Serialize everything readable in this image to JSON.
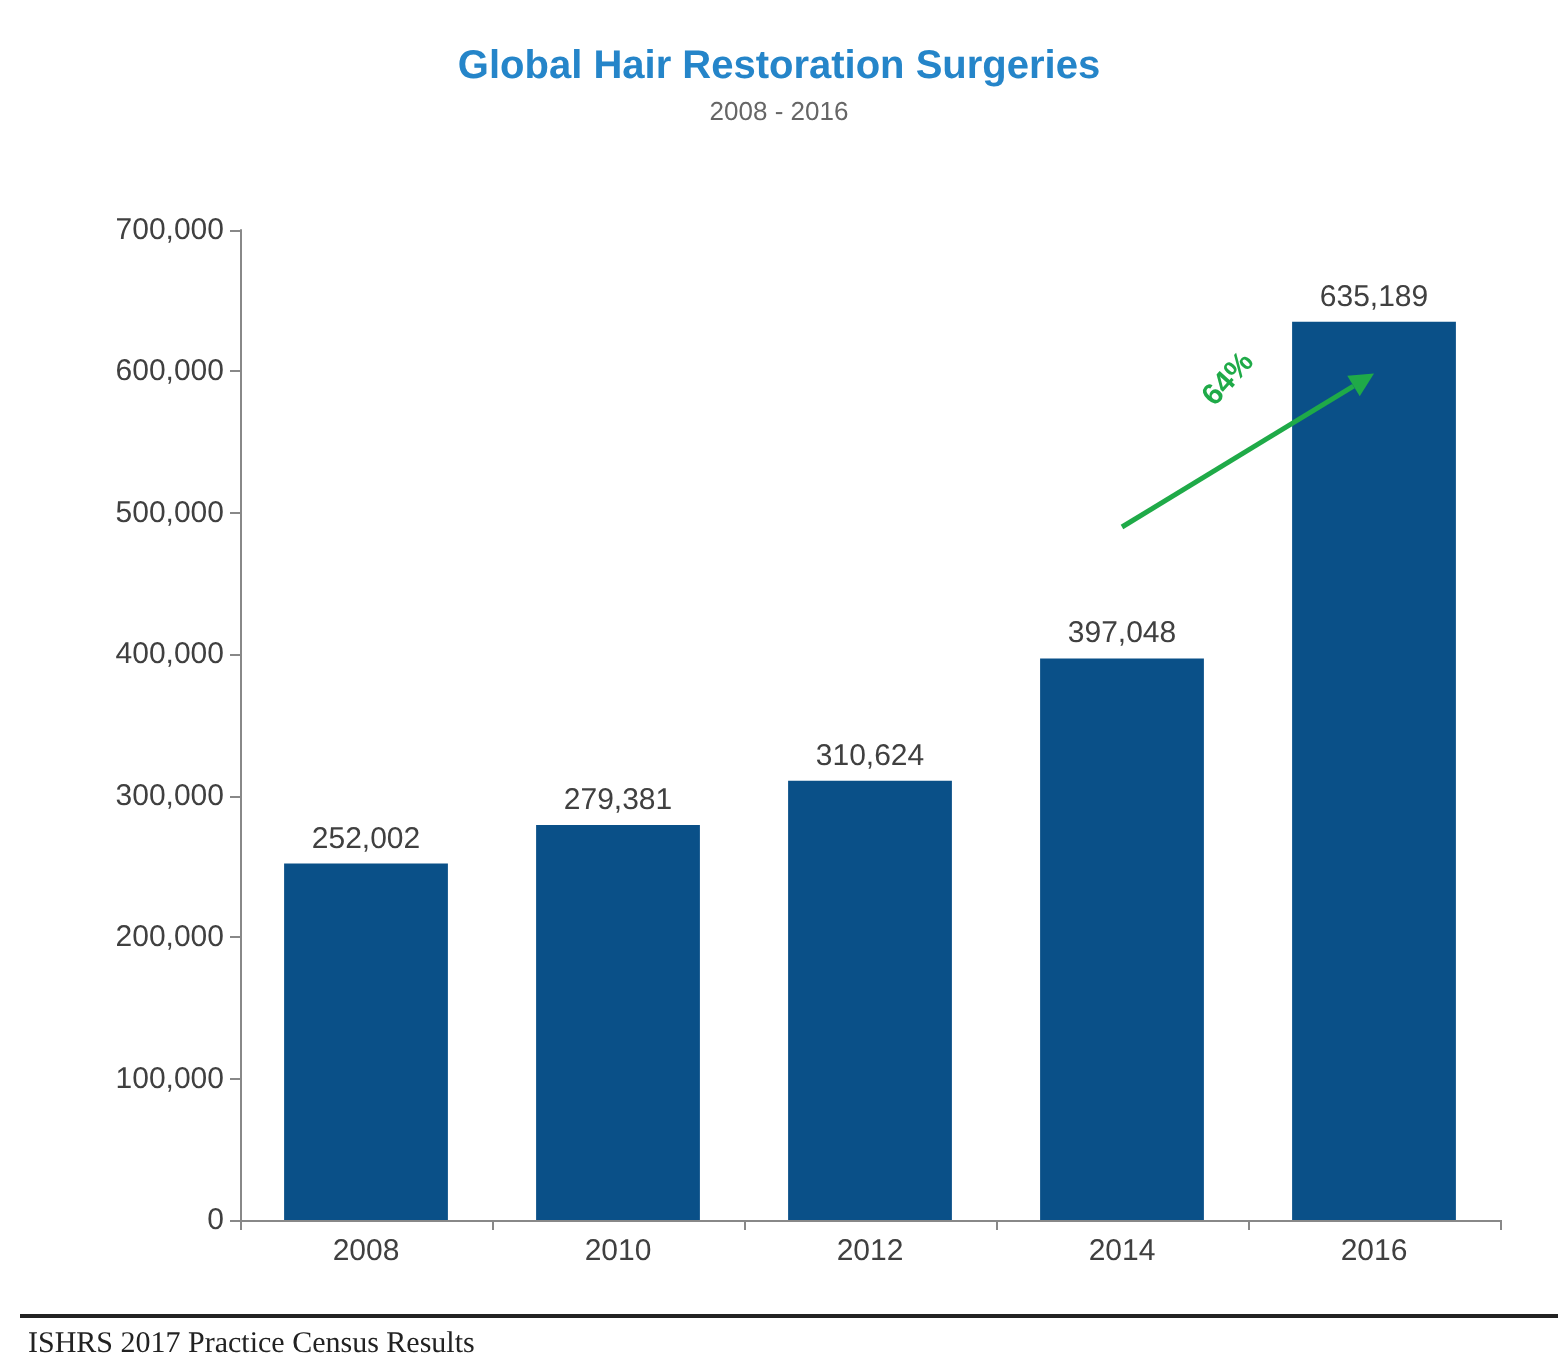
{
  "chart_data": {
    "type": "bar",
    "title": "Global Hair Restoration Surgeries",
    "subtitle": "2008 - 2016",
    "categories": [
      "2008",
      "2010",
      "2012",
      "2014",
      "2016"
    ],
    "values": [
      252002,
      279381,
      310624,
      397048,
      635189
    ],
    "color": "#0a5088",
    "value_labels": [
      "252,002",
      "279,381",
      "310,624",
      "397,048",
      "635,189"
    ],
    "ylim": [
      0,
      700000
    ],
    "yticks": [
      0,
      {
        "value": 100000,
        "label": "100,000"
      },
      {
        "value": 200000,
        "label": "200,000"
      },
      {
        "value": 300000,
        "label": "300,000"
      },
      {
        "value": 400000,
        "label": "400,000"
      },
      {
        "value": 500000,
        "label": "500,000"
      },
      {
        "value": 600000,
        "label": "600,000"
      },
      {
        "value": 700000,
        "label": "700,000"
      }
    ],
    "grid": false,
    "annotations": [
      "64%",
      "ISHRS 2017 Practice Census Results"
    ]
  }
}
